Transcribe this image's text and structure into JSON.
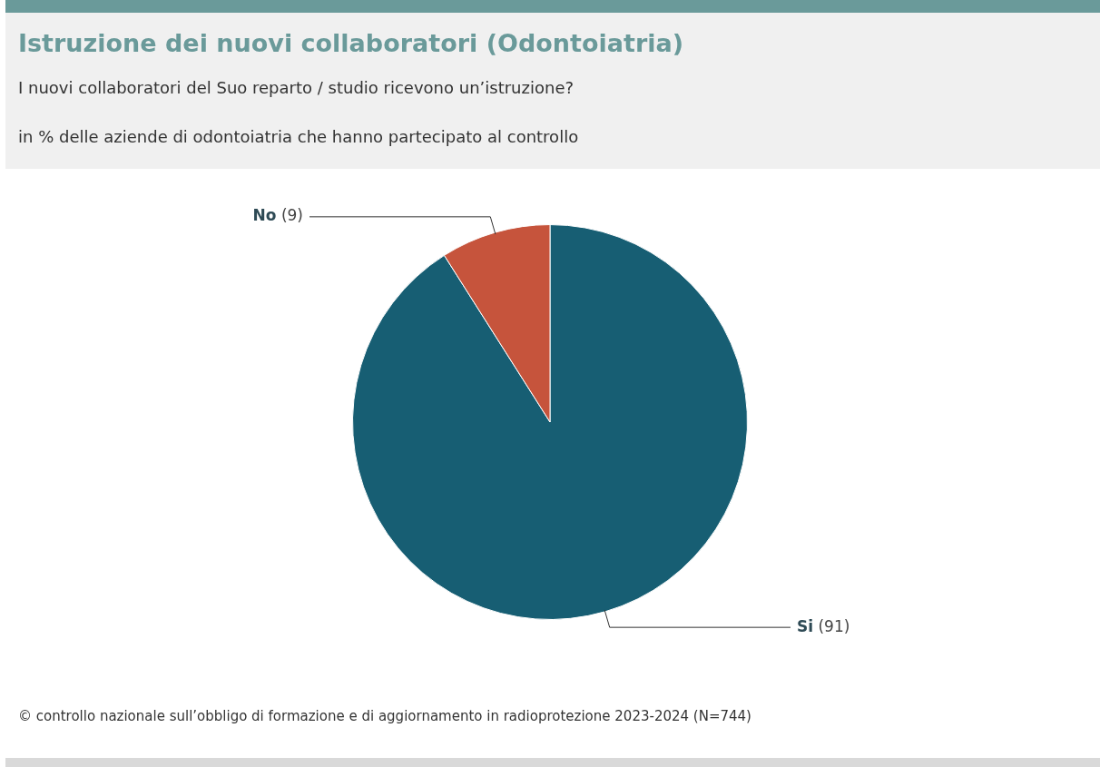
{
  "chart_data": {
    "type": "pie",
    "title": "Istruzione dei nuovi collaboratori (Odontoiatria)",
    "subtitle": "I nuovi collaboratori del Suo reparto / studio ricevono un’istruzione?",
    "annotations": [
      "in % delle aziende di odontoiatria che hanno partecipato al controllo",
      "© controllo nazionale sull’obbligo di formazione e di aggiornamento in radioprotezione 2023-2024 (N=744)"
    ],
    "categories": [
      "Si",
      "No"
    ],
    "values": [
      91,
      9
    ],
    "colors": [
      "#175e73",
      "#c6543c"
    ],
    "value_labels": [
      "(91)",
      "(9)"
    ],
    "legend": false
  }
}
